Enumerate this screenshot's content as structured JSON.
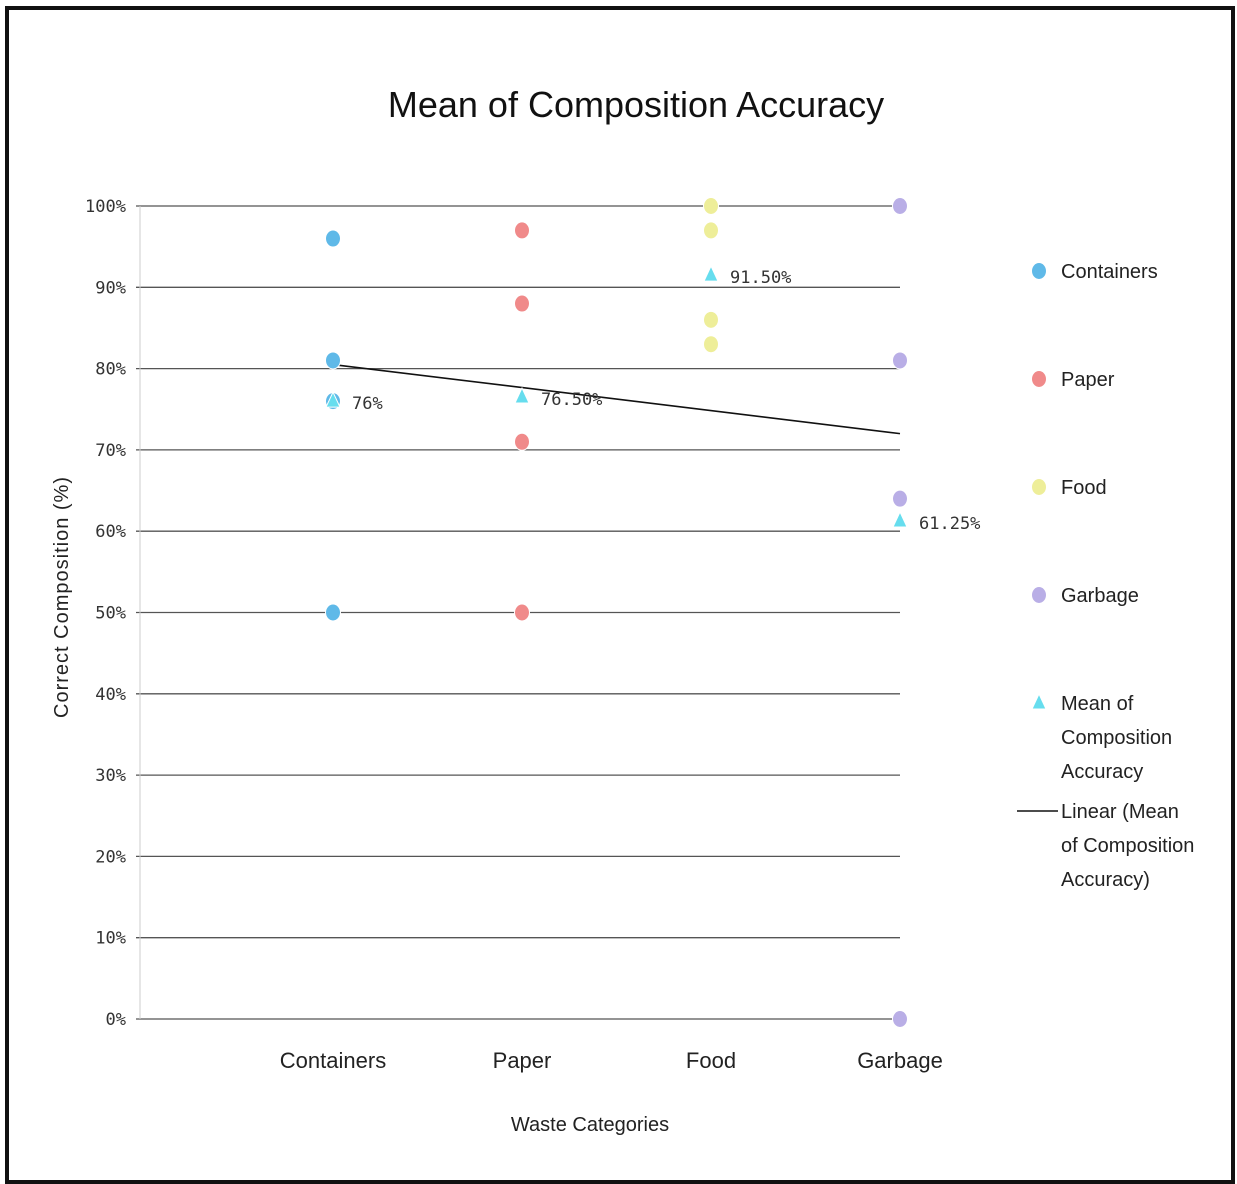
{
  "chart_data": {
    "type": "scatter",
    "title": "Mean of Composition Accuracy",
    "xlabel": "Waste Categories",
    "ylabel": "Correct Composition (%)",
    "categories": [
      "Containers",
      "Paper",
      "Food",
      "Garbage"
    ],
    "ylim": [
      0,
      100
    ],
    "yticks": [
      "0%",
      "10%",
      "20%",
      "30%",
      "40%",
      "50%",
      "60%",
      "70%",
      "80%",
      "90%",
      "100%"
    ],
    "grid": true,
    "legend_position": "right",
    "series": [
      {
        "name": "Containers",
        "color": "#5fb9e8",
        "marker": "circle",
        "points": [
          {
            "x": "Containers",
            "y": 96
          },
          {
            "x": "Containers",
            "y": 81
          },
          {
            "x": "Containers",
            "y": 76
          },
          {
            "x": "Containers",
            "y": 50
          }
        ]
      },
      {
        "name": "Paper",
        "color": "#f08a8a",
        "marker": "circle",
        "points": [
          {
            "x": "Paper",
            "y": 97
          },
          {
            "x": "Paper",
            "y": 88
          },
          {
            "x": "Paper",
            "y": 71
          },
          {
            "x": "Paper",
            "y": 50
          }
        ]
      },
      {
        "name": "Food",
        "color": "#eeee99",
        "marker": "circle",
        "points": [
          {
            "x": "Food",
            "y": 100
          },
          {
            "x": "Food",
            "y": 97
          },
          {
            "x": "Food",
            "y": 86
          },
          {
            "x": "Food",
            "y": 83
          }
        ]
      },
      {
        "name": "Garbage",
        "color": "#b9aee6",
        "marker": "circle",
        "points": [
          {
            "x": "Garbage",
            "y": 100
          },
          {
            "x": "Garbage",
            "y": 81
          },
          {
            "x": "Garbage",
            "y": 64
          },
          {
            "x": "Garbage",
            "y": 0
          }
        ]
      },
      {
        "name": "Mean of Composition Accuracy",
        "color": "#66ddee",
        "marker": "triangle",
        "points": [
          {
            "x": "Containers",
            "y": 76,
            "label": "76%"
          },
          {
            "x": "Paper",
            "y": 76.5,
            "label": "76.50%"
          },
          {
            "x": "Food",
            "y": 91.5,
            "label": "91.50%"
          },
          {
            "x": "Garbage",
            "y": 61.25,
            "label": "61.25%"
          }
        ]
      }
    ],
    "trendline": {
      "name": "Linear (Mean of Composition Accuracy)",
      "color": "#111111",
      "start": {
        "x": "Containers",
        "y": 80.5
      },
      "end": {
        "x": "Garbage",
        "y": 72
      }
    },
    "legend": [
      {
        "label": "Containers",
        "marker": "circle",
        "color": "#5fb9e8"
      },
      {
        "label": "Paper",
        "marker": "circle",
        "color": "#f08a8a"
      },
      {
        "label": "Food",
        "marker": "circle",
        "color": "#eeee99"
      },
      {
        "label": "Garbage",
        "marker": "circle",
        "color": "#b9aee6"
      },
      {
        "label": "Mean of Composition Accuracy",
        "marker": "triangle",
        "color": "#66ddee"
      },
      {
        "label": "Linear (Mean of Composition Accuracy)",
        "marker": "line",
        "color": "#111111"
      }
    ]
  }
}
